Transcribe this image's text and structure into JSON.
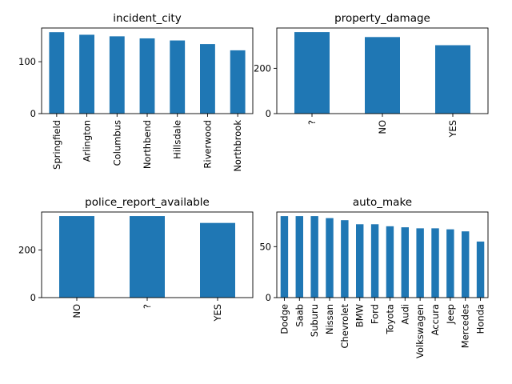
{
  "chart_data": [
    {
      "type": "bar",
      "title": "incident_city",
      "categories": [
        "Springfield",
        "Arlington",
        "Columbus",
        "Northbend",
        "Hillsdale",
        "Riverwood",
        "Northbrook"
      ],
      "values": [
        157,
        152,
        149,
        145,
        141,
        134,
        122
      ],
      "ylim": [
        0,
        165
      ],
      "yticks": [
        0,
        100
      ],
      "color": "#1f77b4",
      "grid": false
    },
    {
      "type": "bar",
      "title": "property_damage",
      "categories": [
        "?",
        "NO",
        "YES"
      ],
      "values": [
        360,
        338,
        302
      ],
      "ylim": [
        0,
        378
      ],
      "yticks": [
        0,
        200
      ],
      "color": "#1f77b4",
      "grid": false
    },
    {
      "type": "bar",
      "title": "police_report_available",
      "categories": [
        "NO",
        "?",
        "YES"
      ],
      "values": [
        343,
        343,
        314
      ],
      "ylim": [
        0,
        360
      ],
      "yticks": [
        0,
        200
      ],
      "color": "#1f77b4",
      "grid": false
    },
    {
      "type": "bar",
      "title": "auto_make",
      "categories": [
        "Dodge",
        "Saab",
        "Suburu",
        "Nissan",
        "Chevrolet",
        "BMW",
        "Ford",
        "Toyota",
        "Audi",
        "Volkswagen",
        "Accura",
        "Jeep",
        "Mercedes",
        "Honda"
      ],
      "values": [
        80,
        80,
        80,
        78,
        76,
        72,
        72,
        70,
        69,
        68,
        68,
        67,
        65,
        55
      ],
      "ylim": [
        0,
        84
      ],
      "yticks": [
        0,
        50
      ],
      "color": "#1f77b4",
      "grid": false
    }
  ]
}
